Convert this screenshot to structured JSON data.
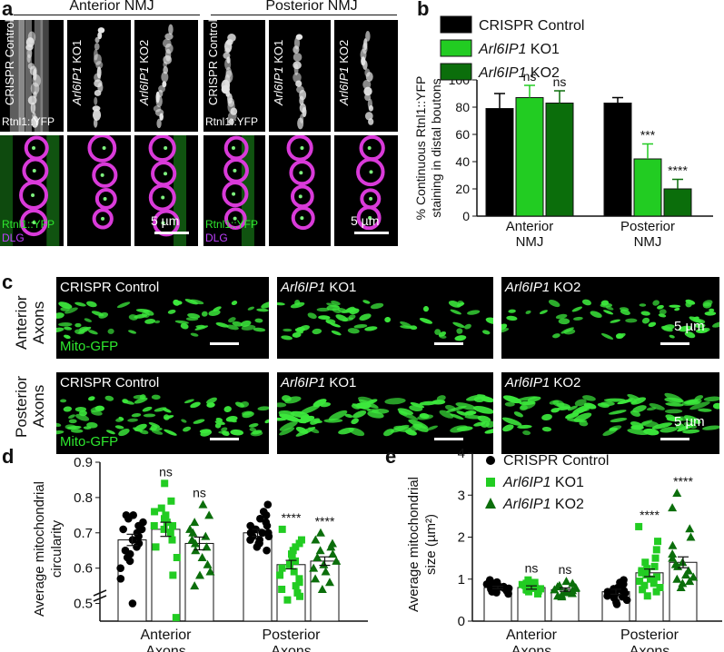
{
  "panel_a": {
    "letter": "a",
    "header_anterior": "Anterior NMJ",
    "header_posterior": "Posterior NMJ",
    "col_labels": [
      "CRISPR Control",
      "Arl6IP1 KO1",
      "Arl6IP1 KO2",
      "CRISPR Control",
      "Arl6IP1 KO1",
      "Arl6IP1 KO2"
    ],
    "top_channel_label": "Rtnl1::YFP",
    "bottom_label_green": "Rtnl1::YFP",
    "bottom_label_magenta": "DLG",
    "scale": "5 µm"
  },
  "panel_b": {
    "letter": "b",
    "legend": [
      "CRISPR Control",
      "Arl6IP1 KO1",
      "Arl6IP1 KO2"
    ],
    "colors": [
      "#000000",
      "#22cc22",
      "#0b6e0b"
    ]
  },
  "panel_c": {
    "letter": "c",
    "row_anterior": [
      "Anterior",
      "Axons"
    ],
    "row_posterior": [
      "Posterior",
      "Axons"
    ],
    "strip_ctrl": "CRISPR Control",
    "strip_ko1_gene": "Arl6IP1",
    "strip_ko1_suffix": " KO1",
    "strip_ko2_gene": "Arl6IP1",
    "strip_ko2_suffix": " KO2",
    "channel": "Mito-GFP",
    "scale": "5 µm"
  },
  "panel_d": {
    "letter": "d"
  },
  "panel_e": {
    "letter": "e"
  },
  "chart_data": [
    {
      "type": "bar",
      "panel": "b",
      "ylabel": "% Continuous Rtnl1::YFP staining in distal boutons",
      "ylabel_lines": [
        "% Continuous Rtnl1::YFP",
        "staining in distal boutons"
      ],
      "categories": [
        "Anterior NMJ",
        "Posterior NMJ"
      ],
      "category_lines": [
        [
          "Anterior",
          "NMJ"
        ],
        [
          "Posterior",
          "NMJ"
        ]
      ],
      "ylim": [
        0,
        100
      ],
      "yticks": [
        0,
        20,
        40,
        60,
        80,
        100
      ],
      "series": [
        {
          "name": "CRISPR Control",
          "values": [
            79,
            83
          ],
          "errors": [
            11,
            4
          ],
          "labels": [
            "",
            ""
          ]
        },
        {
          "name": "Arl6IP1 KO1",
          "values": [
            87,
            42
          ],
          "errors": [
            9,
            11
          ],
          "labels": [
            "ns",
            "***"
          ]
        },
        {
          "name": "Arl6IP1 KO2",
          "values": [
            83,
            20
          ],
          "errors": [
            9,
            7
          ],
          "labels": [
            "ns",
            "****"
          ]
        }
      ]
    },
    {
      "type": "bar",
      "panel": "d",
      "ylabel": "Average mitochondrial circularity",
      "ylabel_lines": [
        "Average mitochondrial",
        "circularity"
      ],
      "categories": [
        "Anterior Axons",
        "Posterior Axons"
      ],
      "category_lines": [
        [
          "Anterior",
          "Axons"
        ],
        [
          "Posterior",
          "Axons"
        ]
      ],
      "ylim": [
        0.45,
        0.9
      ],
      "axis_break": true,
      "yticks": [
        0.5,
        0.6,
        0.7,
        0.8,
        0.9
      ],
      "series": [
        {
          "name": "CRISPR Control",
          "marker": "circle",
          "values": [
            0.68,
            0.7
          ],
          "errors": [
            0.016,
            0.01
          ],
          "labels": [
            "",
            ""
          ],
          "points": [
            [
              0.75,
              0.75,
              0.74,
              0.73,
              0.72,
              0.71,
              0.71,
              0.7,
              0.69,
              0.68,
              0.67,
              0.66,
              0.65,
              0.64,
              0.63,
              0.62,
              0.6,
              0.57,
              0.5
            ],
            [
              0.78,
              0.76,
              0.75,
              0.74,
              0.73,
              0.72,
              0.72,
              0.71,
              0.71,
              0.7,
              0.7,
              0.7,
              0.69,
              0.69,
              0.68,
              0.68,
              0.67,
              0.67,
              0.66,
              0.65
            ]
          ]
        },
        {
          "name": "Arl6IP1 KO1",
          "marker": "square",
          "values": [
            0.71,
            0.61
          ],
          "errors": [
            0.02,
            0.012
          ],
          "labels": [
            "ns",
            "****"
          ],
          "points": [
            [
              0.84,
              0.79,
              0.77,
              0.76,
              0.75,
              0.74,
              0.73,
              0.72,
              0.72,
              0.71,
              0.7,
              0.68,
              0.66,
              0.63,
              0.58,
              0.46
            ],
            [
              0.71,
              0.68,
              0.67,
              0.66,
              0.65,
              0.64,
              0.63,
              0.62,
              0.61,
              0.6,
              0.59,
              0.58,
              0.57,
              0.56,
              0.55,
              0.54,
              0.53,
              0.52,
              0.51
            ]
          ]
        },
        {
          "name": "Arl6IP1 KO2",
          "marker": "triangle",
          "values": [
            0.67,
            0.62
          ],
          "errors": [
            0.018,
            0.012
          ],
          "labels": [
            "ns",
            "****"
          ],
          "points": [
            [
              0.78,
              0.75,
              0.73,
              0.71,
              0.7,
              0.69,
              0.68,
              0.67,
              0.66,
              0.65,
              0.63,
              0.61,
              0.59,
              0.58,
              0.55
            ],
            [
              0.7,
              0.68,
              0.67,
              0.66,
              0.65,
              0.64,
              0.63,
              0.62,
              0.61,
              0.6,
              0.59,
              0.57,
              0.56,
              0.54
            ]
          ]
        }
      ]
    },
    {
      "type": "bar",
      "panel": "e",
      "ylabel": "Average mitochondrial size (µm²)",
      "ylabel_lines": [
        "Average mitochondrial",
        "size (µm²)"
      ],
      "categories": [
        "Anterior Axons",
        "Posterior Axons"
      ],
      "category_lines": [
        [
          "Anterior",
          "Axons"
        ],
        [
          "Posterior",
          "Axons"
        ]
      ],
      "ylim": [
        0,
        4
      ],
      "yticks": [
        0,
        1,
        2,
        3,
        4
      ],
      "series": [
        {
          "name": "CRISPR Control",
          "marker": "circle",
          "values": [
            0.8,
            0.7
          ],
          "errors": [
            0.03,
            0.06
          ],
          "labels": [
            "",
            ""
          ],
          "points": [
            [
              0.98,
              0.93,
              0.9,
              0.88,
              0.86,
              0.84,
              0.82,
              0.81,
              0.8,
              0.79,
              0.78,
              0.76,
              0.75,
              0.74,
              0.72,
              0.7,
              0.68,
              0.65
            ],
            [
              0.98,
              0.92,
              0.88,
              0.84,
              0.8,
              0.77,
              0.74,
              0.72,
              0.7,
              0.68,
              0.66,
              0.64,
              0.62,
              0.6,
              0.58,
              0.55,
              0.5,
              0.45,
              0.4
            ]
          ]
        },
        {
          "name": "Arl6IP1 KO1",
          "marker": "square",
          "values": [
            0.8,
            1.15
          ],
          "errors": [
            0.04,
            0.09
          ],
          "labels": [
            "ns",
            "****"
          ],
          "points": [
            [
              0.98,
              0.92,
              0.9,
              0.87,
              0.85,
              0.83,
              0.82,
              0.8,
              0.79,
              0.78,
              0.77,
              0.75,
              0.74,
              0.72,
              0.7,
              0.65
            ],
            [
              2.25,
              1.9,
              1.7,
              1.5,
              1.4,
              1.3,
              1.25,
              1.2,
              1.15,
              1.1,
              1.05,
              1.0,
              0.95,
              0.9,
              0.85,
              0.8,
              0.75,
              0.7,
              0.6
            ]
          ]
        },
        {
          "name": "Arl6IP1 KO2",
          "marker": "triangle",
          "values": [
            0.75,
            1.4
          ],
          "errors": [
            0.04,
            0.13
          ],
          "labels": [
            "ns",
            "****"
          ],
          "points": [
            [
              0.95,
              0.9,
              0.85,
              0.82,
              0.8,
              0.78,
              0.75,
              0.73,
              0.7,
              0.68,
              0.66,
              0.62,
              0.6,
              0.58
            ],
            [
              3.05,
              2.7,
              2.2,
              2.0,
              1.8,
              1.6,
              1.5,
              1.4,
              1.35,
              1.3,
              1.2,
              1.1,
              1.05,
              1.0,
              0.95,
              0.9,
              0.8
            ]
          ]
        }
      ]
    }
  ]
}
